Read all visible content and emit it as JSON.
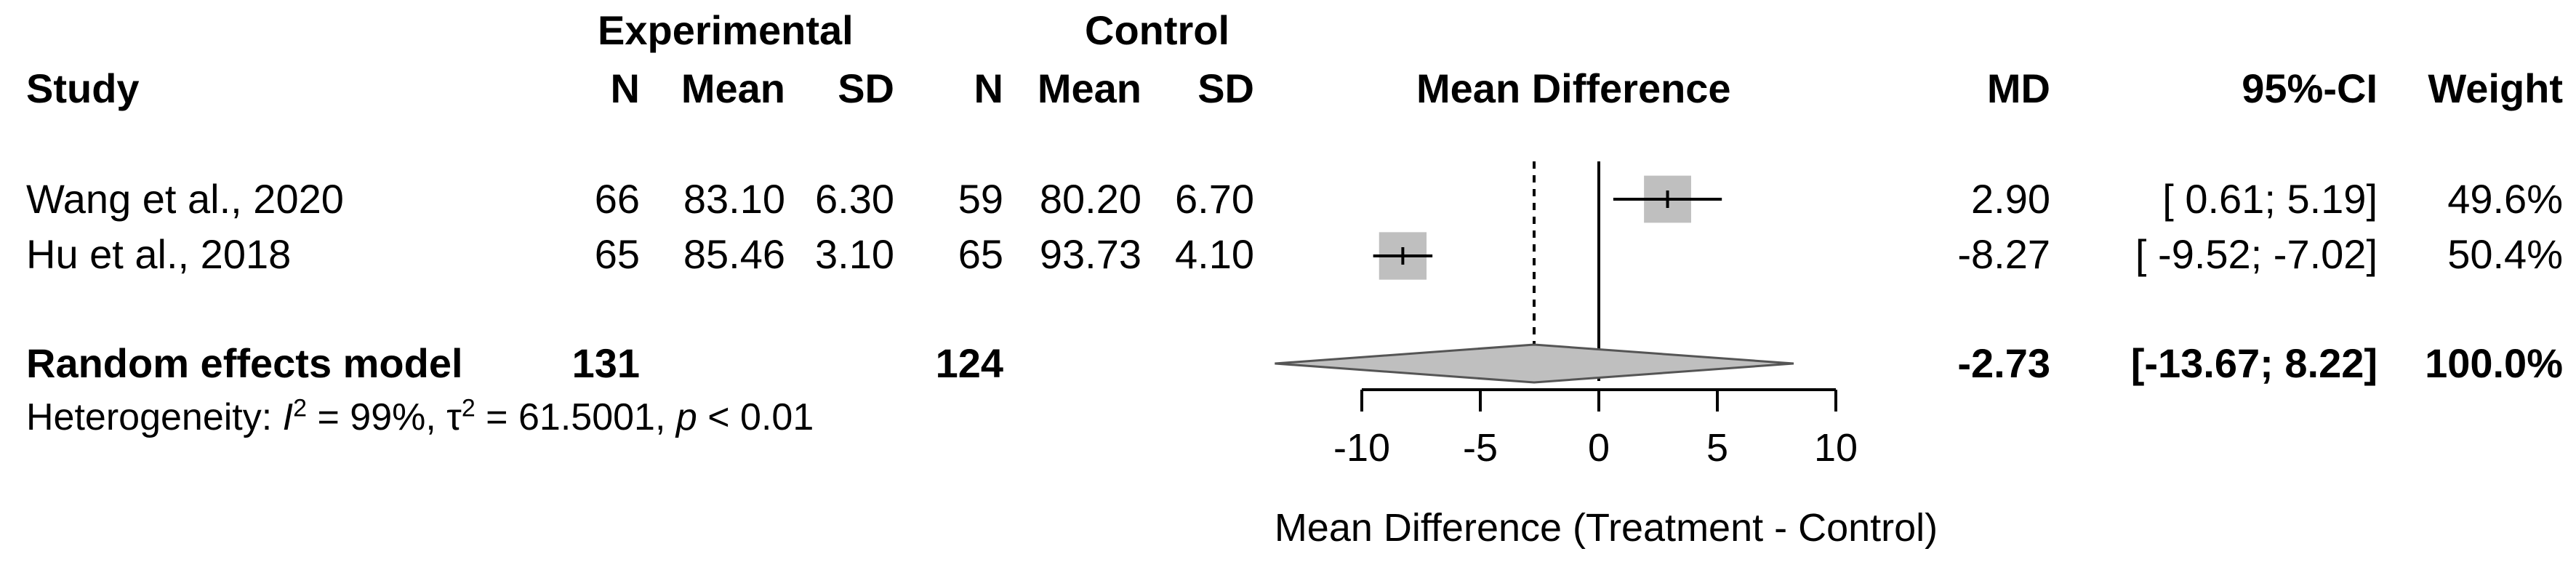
{
  "header": {
    "group_experimental": "Experimental",
    "group_control": "Control",
    "study": "Study",
    "n": "N",
    "mean": "Mean",
    "sd": "SD",
    "plot_title": "Mean Difference",
    "md": "MD",
    "ci": "95%-CI",
    "weight": "Weight"
  },
  "studies": [
    {
      "name": "Wang et al., 2020",
      "e_n": "66",
      "e_mean": "83.10",
      "e_sd": "6.30",
      "c_n": "59",
      "c_mean": "80.20",
      "c_sd": "6.70",
      "md": "2.90",
      "ci": "[ 0.61; 5.19]",
      "weight": "49.6%"
    },
    {
      "name": "Hu  et al., 2018",
      "e_n": "65",
      "e_mean": "85.46",
      "e_sd": "3.10",
      "c_n": "65",
      "c_mean": "93.73",
      "c_sd": "4.10",
      "md": "-8.27",
      "ci": "[ -9.52; -7.02]",
      "weight": "50.4%"
    }
  ],
  "pooled": {
    "label": "Random effects model",
    "e_n": "131",
    "c_n": "124",
    "md": "-2.73",
    "ci": "[-13.67; 8.22]",
    "weight": "100.0%"
  },
  "heterogeneity": {
    "prefix": "Heterogeneity: ",
    "i2_symbol": "I",
    "i2_value": " = 99%, ",
    "tau_symbol": "τ",
    "tau_value": " = 61.5001, ",
    "p_symbol": "p",
    "p_value": " < 0.01"
  },
  "chart_data": {
    "type": "forest",
    "xlabel": "Mean Difference (Treatment - Control)",
    "xlim": [
      -10,
      10
    ],
    "ticks": [
      -10,
      -5,
      0,
      5,
      10
    ],
    "tick_labels": [
      "-10",
      "-5",
      "0",
      "5",
      "10"
    ],
    "null_line": 0,
    "pooled_line": -2.73,
    "studies": [
      {
        "name": "Wang et al., 2020",
        "md": 2.9,
        "lower": 0.61,
        "upper": 5.19,
        "weight": 49.6
      },
      {
        "name": "Hu  et al., 2018",
        "md": -8.27,
        "lower": -9.52,
        "upper": -7.02,
        "weight": 50.4
      }
    ],
    "pooled": {
      "md": -2.73,
      "lower": -13.67,
      "upper": 8.22
    },
    "colors": {
      "box": "#bfbfbf",
      "diamond": "#bfbfbf",
      "line": "#000000"
    }
  }
}
